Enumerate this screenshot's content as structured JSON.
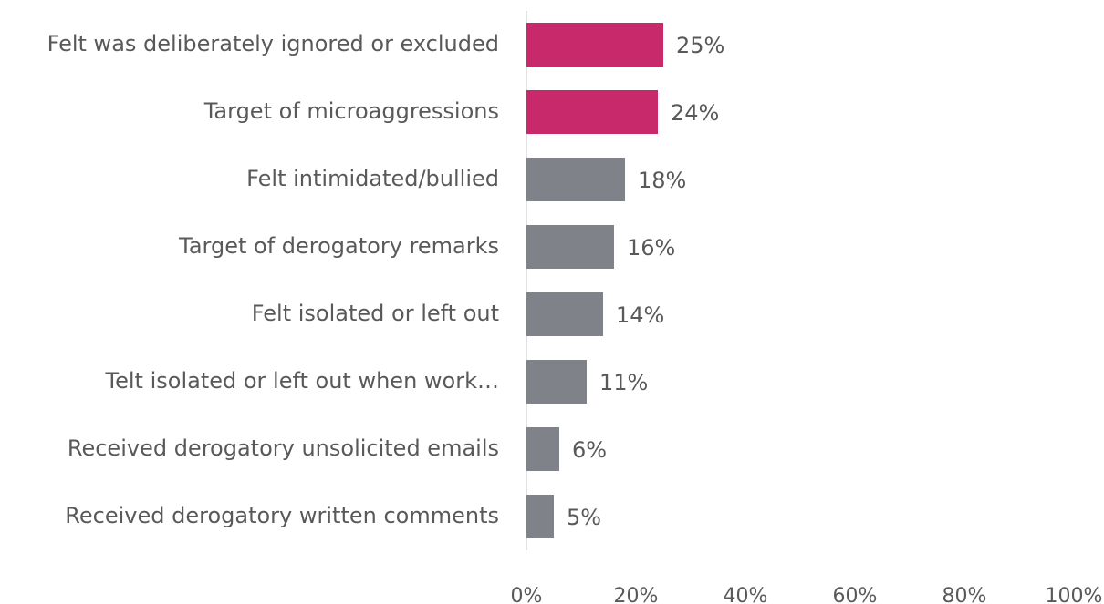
{
  "chart_data": {
    "type": "bar",
    "orientation": "horizontal",
    "categories": [
      "Felt was deliberately ignored or excluded",
      "Target of microaggressions",
      "Felt intimidated/bullied",
      "Target of derogatory remarks",
      "Felt isolated or left out",
      "Telt isolated or left out when work…",
      "Received derogatory unsolicited emails",
      "Received derogatory written comments"
    ],
    "values": [
      25,
      24,
      18,
      16,
      14,
      11,
      6,
      5
    ],
    "value_labels": [
      "25%",
      "24%",
      "18%",
      "16%",
      "14%",
      "11%",
      "6%",
      "5%"
    ],
    "colors": [
      "#c8296a",
      "#c8296a",
      "#808289",
      "#808289",
      "#808289",
      "#808289",
      "#808289",
      "#808289"
    ],
    "xlim": [
      0,
      100
    ],
    "xticks": [
      {
        "value": 0,
        "label": "0%"
      },
      {
        "value": 20,
        "label": "20%"
      },
      {
        "value": 40,
        "label": "40%"
      },
      {
        "value": 60,
        "label": "60%"
      },
      {
        "value": 80,
        "label": "80%"
      },
      {
        "value": 100,
        "label": "100%"
      }
    ],
    "grid": false
  }
}
